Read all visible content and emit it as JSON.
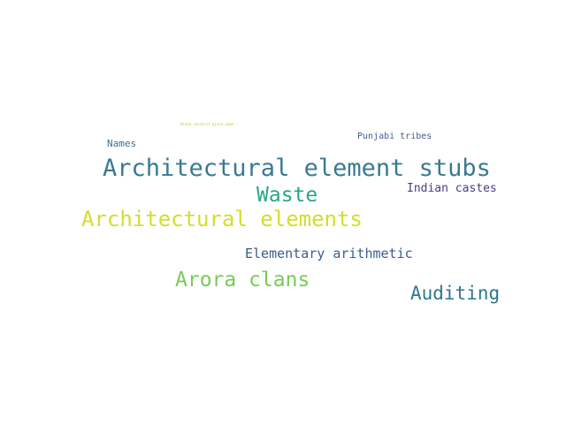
{
  "words": [
    {
      "text": "Hindu sanskrit given name",
      "color": "#a6d63e"
    },
    {
      "text": "Names",
      "color": "#3e6f8f"
    },
    {
      "text": "Punjabi tribes",
      "color": "#465a8e"
    },
    {
      "text": "Architectural element stubs",
      "color": "#3a7a91"
    },
    {
      "text": "Waste",
      "color": "#2aa489"
    },
    {
      "text": "Indian castes",
      "color": "#4a3e84"
    },
    {
      "text": "Architectural elements",
      "color": "#d3de2a"
    },
    {
      "text": "Elementary arithmetic",
      "color": "#3c5c8c"
    },
    {
      "text": "Arora clans",
      "color": "#78cc56"
    },
    {
      "text": "Auditing",
      "color": "#2f7690"
    }
  ]
}
